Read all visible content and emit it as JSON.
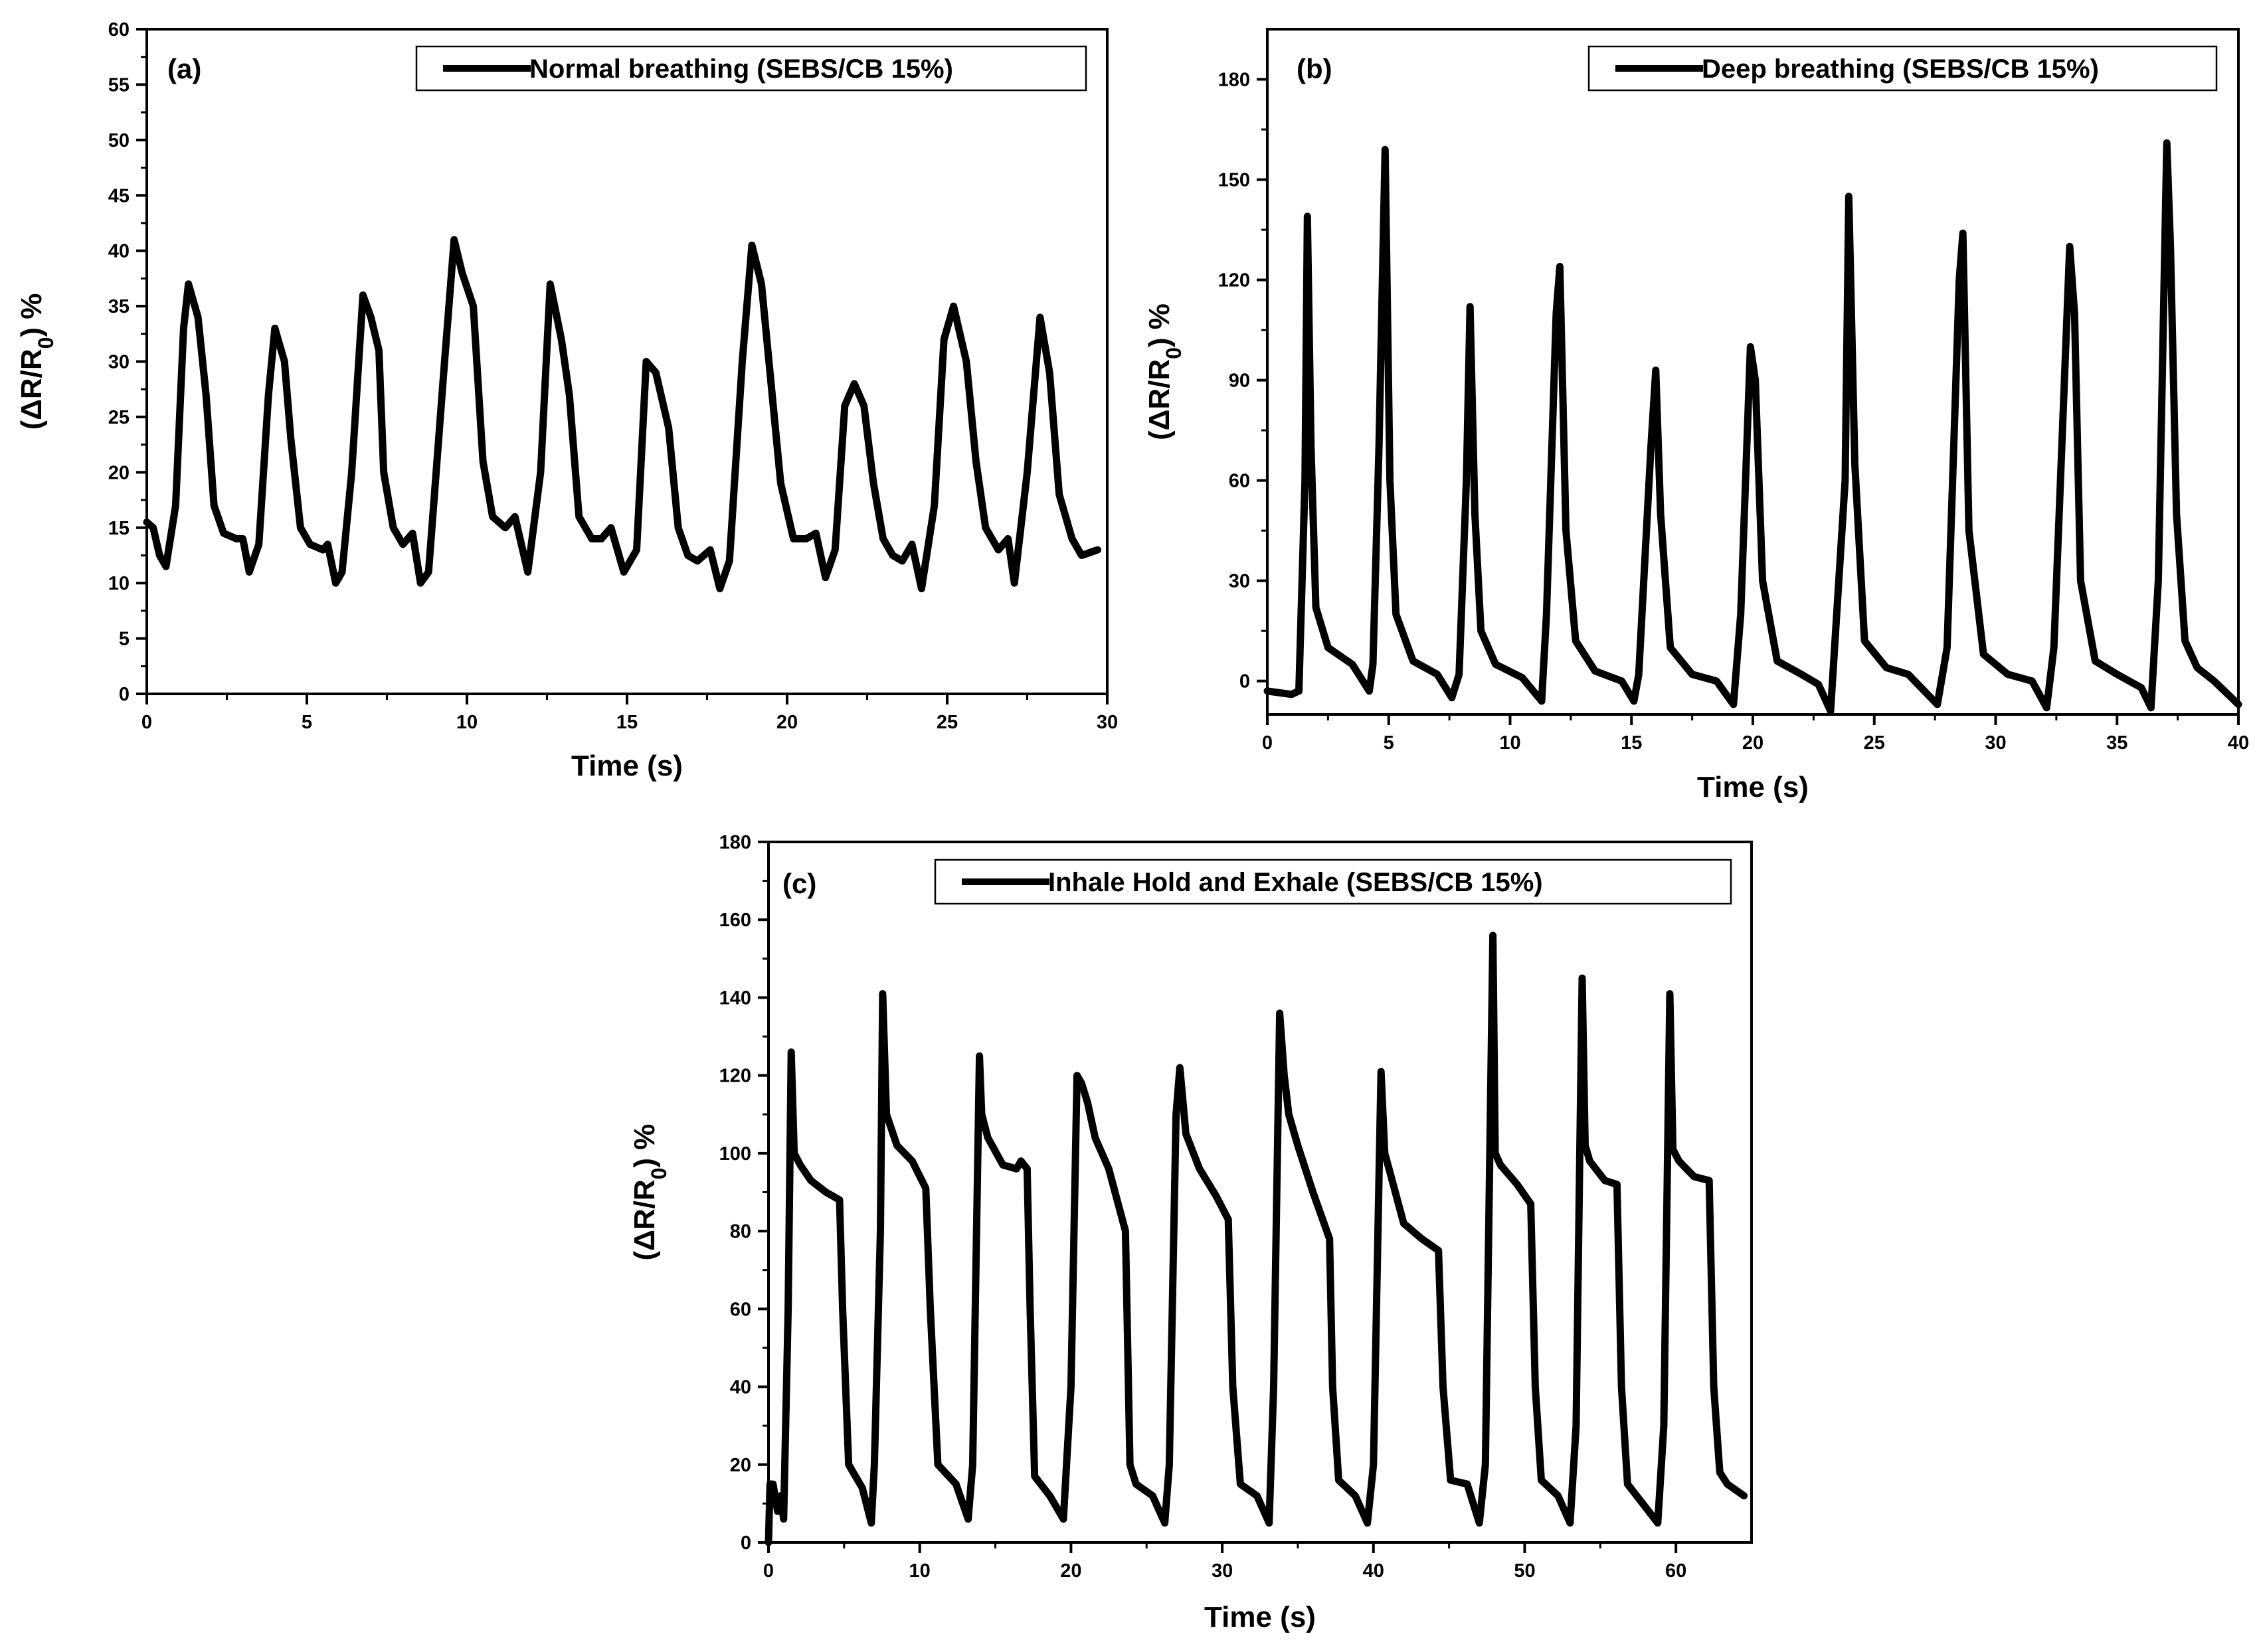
{
  "figure": {
    "panels": [
      "(a)",
      "(b)",
      "(c)"
    ]
  },
  "chart_data": [
    {
      "type": "line",
      "panel_label": "(a)",
      "legend": "Normal breathing (SEBS/CB 15%)",
      "series": [
        {
          "name": "Normal breathing (SEBS/CB 15%)",
          "x": [
            0,
            0.2,
            0.4,
            0.6,
            0.9,
            1.15,
            1.3,
            1.6,
            1.85,
            2.1,
            2.4,
            2.8,
            3.0,
            3.2,
            3.5,
            3.8,
            4.0,
            4.3,
            4.5,
            4.8,
            5.1,
            5.5,
            5.65,
            5.9,
            6.1,
            6.4,
            6.75,
            7.0,
            7.25,
            7.4,
            7.7,
            8.0,
            8.3,
            8.55,
            8.8,
            9.3,
            9.6,
            9.85,
            10.2,
            10.5,
            10.8,
            11.2,
            11.5,
            11.9,
            12.3,
            12.6,
            12.95,
            13.2,
            13.5,
            13.9,
            14.2,
            14.5,
            14.9,
            15.3,
            15.6,
            15.9,
            16.3,
            16.6,
            16.9,
            17.2,
            17.6,
            17.9,
            18.2,
            18.6,
            18.9,
            19.2,
            19.5,
            19.8,
            20.2,
            20.6,
            20.9,
            21.2,
            21.5,
            21.8,
            22.1,
            22.4,
            22.7,
            23.0,
            23.3,
            23.6,
            23.9,
            24.2,
            24.6,
            24.9,
            25.2,
            25.6,
            25.9,
            26.2,
            26.6,
            26.9,
            27.1,
            27.5,
            27.9,
            28.2,
            28.5,
            28.9,
            29.2,
            29.7
          ],
          "y": [
            15.5,
            15,
            12.5,
            11.5,
            17,
            33,
            37,
            34,
            27,
            17,
            14.5,
            14,
            14,
            11,
            13.5,
            27,
            33,
            30,
            23,
            15,
            13.5,
            13,
            13.5,
            10,
            11,
            20,
            36,
            34,
            31,
            20,
            15,
            13.5,
            14.5,
            10,
            11,
            30,
            41,
            38,
            35,
            21,
            16,
            15,
            16,
            11,
            20,
            37,
            32,
            27,
            16,
            14,
            14,
            15,
            11,
            13,
            30,
            29,
            24,
            15,
            12.5,
            12,
            13,
            9.5,
            12,
            30,
            40.5,
            37,
            28,
            19,
            14,
            14,
            14.5,
            10.5,
            13,
            26,
            28,
            26,
            19,
            14,
            12.5,
            12,
            13.5,
            9.5,
            17,
            32,
            35,
            30,
            21,
            15,
            13,
            14,
            10,
            20,
            34,
            29,
            18,
            14,
            12.5,
            13
          ]
        }
      ],
      "xlabel": "Time (s)",
      "ylabel": "(ΔR/R0) %",
      "xlim": [
        0,
        30
      ],
      "ylim": [
        0,
        60
      ],
      "xticks": [
        0,
        5,
        10,
        15,
        20,
        25,
        30
      ],
      "yticks": [
        0,
        5,
        10,
        15,
        20,
        25,
        30,
        35,
        40,
        45,
        50,
        55,
        60
      ],
      "xtick_labels": [
        "0",
        "5",
        "10",
        "15",
        "20",
        "25",
        "30"
      ],
      "ytick_labels": [
        "0",
        "5",
        "10",
        "15",
        "20",
        "25",
        "30",
        "35",
        "40",
        "45",
        "50",
        "55",
        "60"
      ],
      "legend_position": "top-right"
    },
    {
      "type": "line",
      "panel_label": "(b)",
      "legend": "Deep breathing (SEBS/CB 15%)",
      "series": [
        {
          "name": "Deep breathing (SEBS/CB 15%)",
          "x": [
            0,
            1.0,
            1.3,
            1.55,
            1.65,
            1.8,
            2.0,
            2.5,
            3.5,
            4.2,
            4.35,
            4.6,
            4.85,
            5.05,
            5.3,
            6.0,
            7.0,
            7.6,
            7.9,
            8.2,
            8.35,
            8.55,
            8.8,
            9.4,
            10.5,
            11.3,
            11.5,
            11.9,
            12.05,
            12.3,
            12.7,
            13.5,
            14.6,
            15.1,
            15.3,
            15.8,
            16.0,
            16.2,
            16.6,
            17.5,
            18.5,
            19.2,
            19.5,
            19.9,
            20.1,
            20.4,
            21.0,
            22.0,
            22.7,
            23.2,
            23.8,
            23.95,
            24.2,
            24.6,
            25.5,
            26.4,
            27.6,
            28.0,
            28.5,
            28.65,
            28.9,
            29.5,
            30.5,
            31.5,
            32.1,
            32.4,
            33.05,
            33.25,
            33.5,
            34.1,
            35.0,
            36.0,
            36.4,
            36.7,
            37.05,
            37.2,
            37.45,
            37.8,
            38.3,
            39.0,
            40.0
          ],
          "y": [
            -3,
            -4,
            -3,
            60,
            139,
            70,
            22,
            10,
            5,
            -3,
            5,
            70,
            159,
            60,
            20,
            6,
            2,
            -5,
            2,
            60,
            112,
            50,
            15,
            5,
            1,
            -6,
            20,
            110,
            124,
            45,
            12,
            3,
            0,
            -6,
            2,
            70,
            93,
            50,
            10,
            2,
            0,
            -7,
            20,
            100,
            90,
            30,
            6,
            2,
            -1,
            -9,
            60,
            145,
            65,
            12,
            4,
            2,
            -7,
            10,
            120,
            134,
            45,
            8,
            2,
            0,
            -8,
            10,
            130,
            110,
            30,
            6,
            2,
            -2,
            -8,
            30,
            161,
            130,
            50,
            12,
            4,
            0,
            -7
          ]
        }
      ],
      "xlabel": "Time (s)",
      "ylabel": "(ΔR/R0) %",
      "xlim": [
        0,
        40
      ],
      "ylim": [
        -10,
        195
      ],
      "xticks": [
        0,
        5,
        10,
        15,
        20,
        25,
        30,
        35,
        40
      ],
      "yticks": [
        0,
        30,
        60,
        90,
        120,
        150,
        180
      ],
      "xtick_labels": [
        "0",
        "5",
        "10",
        "15",
        "20",
        "25",
        "30",
        "35",
        "40"
      ],
      "ytick_labels": [
        "0",
        "30",
        "60",
        "90",
        "120",
        "150",
        "180"
      ],
      "legend_position": "top-right"
    },
    {
      "type": "line",
      "panel_label": "(c)",
      "legend": "Inhale Hold and Exhale (SEBS/CB 15%)",
      "series": [
        {
          "name": "Inhale Hold and Exhale (SEBS/CB 15%)",
          "x": [
            0,
            0.1,
            0.3,
            0.6,
            0.8,
            1.0,
            1.3,
            1.5,
            1.7,
            2.1,
            2.8,
            3.8,
            4.7,
            4.9,
            5.3,
            6.2,
            6.8,
            7.0,
            7.4,
            7.55,
            7.8,
            8.5,
            9.5,
            10.4,
            10.7,
            11.2,
            12.4,
            13.2,
            13.5,
            13.95,
            14.1,
            14.5,
            15.5,
            16.4,
            16.7,
            17.1,
            17.3,
            17.6,
            18.6,
            19.5,
            20.0,
            20.4,
            20.7,
            21.1,
            21.6,
            22.5,
            23.6,
            23.9,
            24.3,
            25.4,
            26.2,
            26.5,
            26.95,
            27.2,
            27.6,
            28.5,
            29.6,
            30.4,
            30.7,
            31.2,
            32.3,
            33.1,
            33.4,
            33.8,
            34.1,
            34.4,
            35.0,
            36.0,
            37.1,
            37.3,
            37.7,
            38.8,
            39.6,
            40.0,
            40.5,
            40.75,
            41.1,
            42.0,
            43.2,
            44.3,
            44.6,
            45.1,
            46.2,
            47.0,
            47.4,
            47.9,
            48.05,
            48.4,
            49.5,
            50.4,
            50.7,
            51.1,
            52.2,
            53.0,
            53.4,
            53.8,
            54.0,
            54.3,
            55.3,
            56.1,
            56.4,
            56.8,
            57.8,
            58.8,
            59.2,
            59.6,
            59.8,
            60.2,
            61.2,
            62.2,
            62.5,
            62.9,
            63.4,
            64.5
          ],
          "y": [
            0,
            15,
            15,
            8,
            12,
            6,
            60,
            126,
            100,
            97,
            93,
            90,
            88,
            60,
            20,
            14,
            5,
            20,
            80,
            141,
            110,
            102,
            98,
            91,
            60,
            20,
            15,
            6,
            20,
            125,
            110,
            104,
            97,
            96,
            98,
            96,
            60,
            17,
            12,
            6,
            40,
            120,
            118,
            113,
            104,
            96,
            80,
            20,
            15,
            12,
            5,
            20,
            110,
            122,
            105,
            96,
            89,
            83,
            40,
            15,
            12,
            5,
            40,
            136,
            120,
            110,
            102,
            90,
            78,
            40,
            16,
            12,
            5,
            20,
            121,
            100,
            95,
            82,
            78,
            75,
            40,
            16,
            15,
            5,
            20,
            156,
            100,
            97,
            92,
            87,
            40,
            16,
            12,
            5,
            30,
            145,
            102,
            98,
            93,
            92,
            40,
            15,
            10,
            5,
            30,
            141,
            101,
            98,
            94,
            93,
            40,
            18,
            15,
            12
          ]
        }
      ],
      "xlabel": "Time (s)",
      "ylabel": "(ΔR/R0) %",
      "xlim": [
        0,
        65
      ],
      "ylim": [
        0,
        180
      ],
      "xticks": [
        0,
        10,
        20,
        30,
        40,
        50,
        60
      ],
      "yticks": [
        0,
        20,
        40,
        60,
        80,
        100,
        120,
        140,
        160,
        180
      ],
      "xtick_labels": [
        "0",
        "10",
        "20",
        "30",
        "40",
        "50",
        "60"
      ],
      "ytick_labels": [
        "0",
        "20",
        "40",
        "60",
        "80",
        "100",
        "120",
        "140",
        "160",
        "180"
      ],
      "legend_position": "top-right"
    }
  ]
}
